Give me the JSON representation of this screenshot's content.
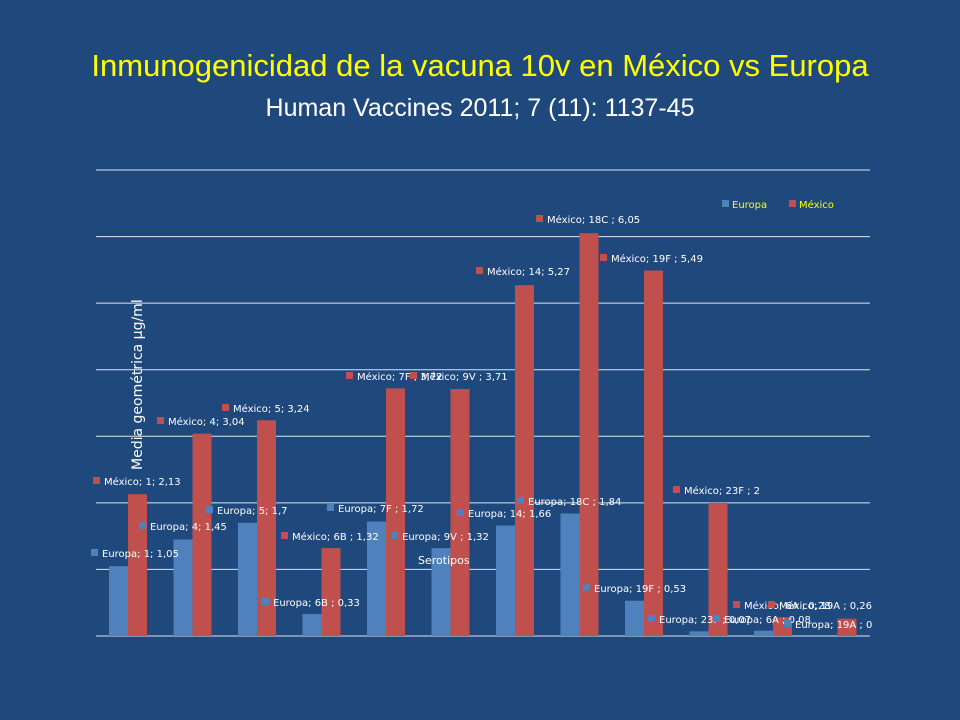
{
  "slide": {
    "title": "Inmunogenicidad  de la vacuna 10v en México vs Europa",
    "subtitle": "Human Vaccines 2011; 7 (11): 1137-45"
  },
  "colors": {
    "background": "#1f497d",
    "europa": "#4f81bd",
    "mexico": "#c0504d",
    "title": "#ffff00",
    "gridline": "#ffffff"
  },
  "chart_data": {
    "type": "bar",
    "ylabel": "Media geométrica µg/ml",
    "xlabel": "Serotipos",
    "ylim": [
      0,
      7
    ],
    "grid": true,
    "legend": "top-right",
    "categories": [
      "1",
      "4",
      "5",
      "6B",
      "7F",
      "9V",
      "14",
      "18C",
      "19F",
      "23F",
      "6A",
      "19A"
    ],
    "series": [
      {
        "name": "Europa",
        "values": [
          1.05,
          1.45,
          1.7,
          0.33,
          1.72,
          1.32,
          1.66,
          1.84,
          0.53,
          0.07,
          0.08,
          0
        ],
        "labels": [
          "Europa; 1; 1,05",
          "Europa; 4; 1,45",
          "Europa; 5; 1,7",
          "Europa; 6B ; 0,33",
          "Europa; 7F ; 1,72",
          "Europa; 9V ; 1,32",
          "Europa; 14; 1,66",
          "Europa; 18C ; 1,84",
          "Europa; 19F ; 0,53",
          "Europa; 23F ; 0,07",
          "Europa; 6A ; 0,08",
          "Europa; 19A ; 0"
        ]
      },
      {
        "name": "México",
        "values": [
          2.13,
          3.04,
          3.24,
          1.32,
          3.72,
          3.71,
          5.27,
          6.05,
          5.49,
          2,
          0.28,
          0.26
        ],
        "labels": [
          "México; 1; 2,13",
          "México; 4; 3,04",
          "México; 5; 3,24",
          "México; 6B ; 1,32",
          "México; 7F ; 3,72",
          "México; 9V ; 3,71",
          "México; 14; 5,27",
          "México; 18C ; 6,05",
          "México; 19F ; 5,49",
          "México; 23F ; 2",
          "México; 6A ; 0,28",
          "México; 19A ; 0,26"
        ]
      }
    ]
  }
}
